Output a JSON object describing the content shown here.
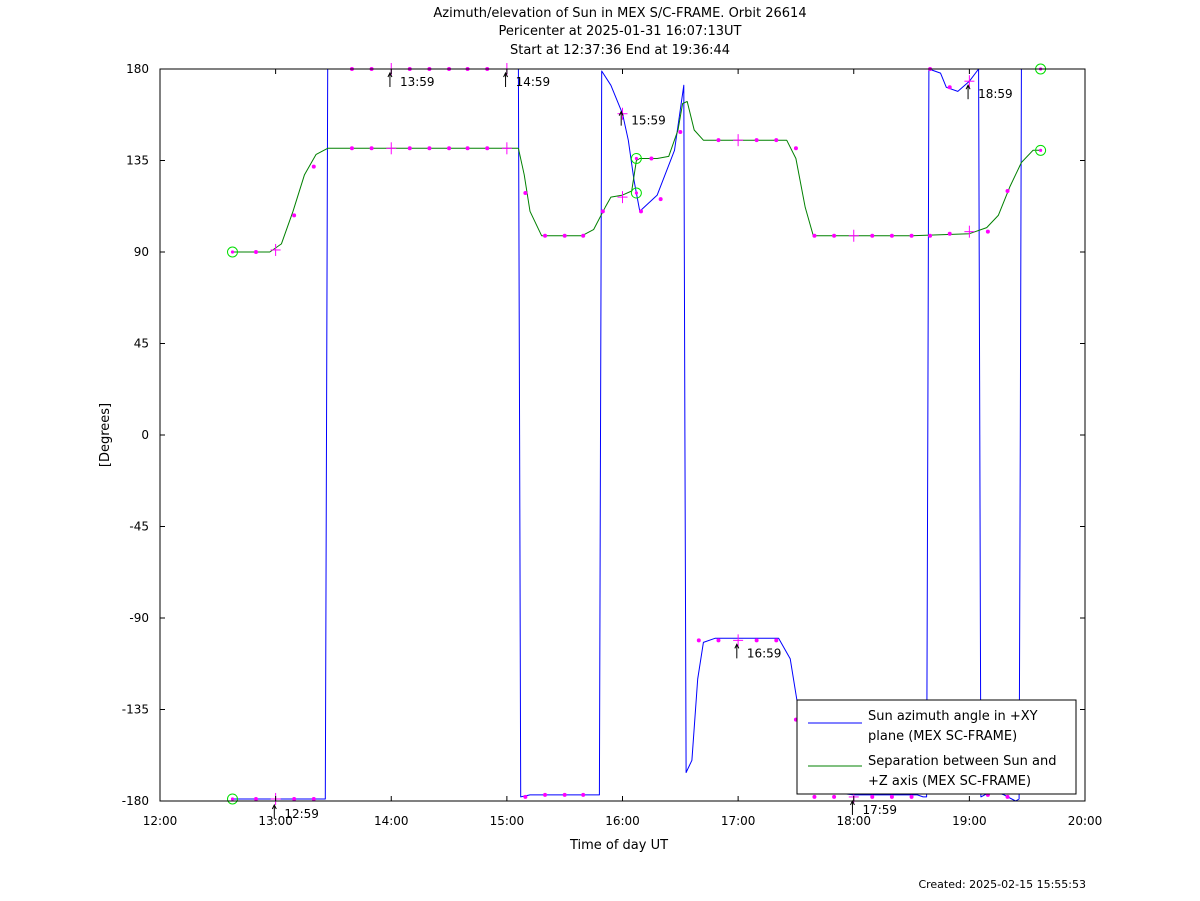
{
  "chart_data": {
    "type": "line",
    "title_lines": [
      "Azimuth/elevation of Sun in MEX S/C-FRAME.  Orbit 26614",
      "Pericenter at 2025-01-31 16:07:13UT",
      "Start at 12:37:36 End at 19:36:44"
    ],
    "xlabel": "Time of day UT",
    "ylabel": "[Degrees]",
    "xlim": [
      12.0,
      20.0
    ],
    "ylim": [
      -180,
      180
    ],
    "x_ticks": [
      12,
      13,
      14,
      15,
      16,
      17,
      18,
      19,
      20
    ],
    "x_tick_labels": [
      "12:00",
      "13:00",
      "14:00",
      "15:00",
      "16:00",
      "17:00",
      "18:00",
      "19:00",
      "20:00"
    ],
    "y_ticks": [
      180,
      135,
      90,
      45,
      0,
      -45,
      -90,
      -135,
      -180
    ],
    "y_tick_labels": [
      "180",
      "135",
      "90",
      "45",
      "0",
      "-45",
      "-90",
      "-135",
      "-180"
    ],
    "legend_placement": "bottom-right",
    "series": [
      {
        "name": "Sun azimuth angle in +XY plane (MEX SC-FRAME)",
        "legend_lines": [
          "Sun azimuth angle in +XY",
          "plane (MEX SC-FRAME)"
        ],
        "color": "#0000ff",
        "x": [
          12.627,
          13.0,
          13.3,
          13.43,
          13.44,
          13.45,
          14.0,
          14.5,
          15.0,
          15.1,
          15.11,
          15.12,
          15.2,
          15.5,
          15.8,
          15.81,
          15.82,
          15.9,
          16.0,
          16.05,
          16.1,
          16.15,
          16.3,
          16.45,
          16.5,
          16.53,
          16.54,
          16.55,
          16.6,
          16.65,
          16.7,
          16.8,
          17.0,
          17.35,
          17.45,
          17.55,
          17.6,
          17.7,
          18.0,
          18.3,
          18.55,
          18.6,
          18.63,
          18.64,
          18.65,
          18.75,
          18.8,
          18.9,
          19.0,
          19.08,
          19.09,
          19.1,
          19.2,
          19.3,
          19.4,
          19.43,
          19.44,
          19.45,
          19.616
        ],
        "y": [
          -179,
          -179,
          -179,
          -179,
          0,
          180,
          180,
          180,
          180,
          180,
          0,
          -178,
          -177,
          -177,
          -177,
          0,
          179,
          172,
          158,
          145,
          125,
          110,
          118,
          140,
          160,
          172,
          0,
          -166,
          -160,
          -120,
          -102,
          -100,
          -100,
          -100,
          -110,
          -145,
          -160,
          -175,
          -177,
          -177,
          -177,
          -178,
          -178,
          0,
          180,
          178,
          171,
          169,
          174,
          180,
          0,
          -178,
          -175,
          -177,
          -180,
          -179,
          0,
          180,
          180
        ]
      },
      {
        "name": "Separation between Sun and +Z axis (MEX SC-FRAME)",
        "legend_lines": [
          "Separation between Sun and",
          "+Z axis (MEX SC-FRAME)"
        ],
        "color": "#008000",
        "x": [
          12.627,
          12.8,
          12.95,
          13.05,
          13.15,
          13.25,
          13.35,
          13.45,
          13.6,
          14.0,
          14.5,
          15.0,
          15.1,
          15.15,
          15.2,
          15.3,
          15.5,
          15.65,
          15.75,
          15.85,
          15.9,
          16.0,
          16.08,
          16.12,
          16.15,
          16.3,
          16.4,
          16.48,
          16.52,
          16.56,
          16.62,
          16.7,
          17.0,
          17.3,
          17.42,
          17.5,
          17.58,
          17.65,
          18.0,
          18.5,
          19.0,
          19.15,
          19.25,
          19.35,
          19.45,
          19.55,
          19.616
        ],
        "y": [
          90,
          90,
          90,
          94,
          110,
          128,
          138,
          141,
          141,
          141,
          141,
          141,
          141,
          128,
          110,
          98,
          98,
          98,
          101,
          112,
          117,
          118,
          120,
          135,
          136,
          136,
          137,
          150,
          163,
          164,
          150,
          145,
          145,
          145,
          145,
          136,
          112,
          98,
          98,
          98,
          99,
          102,
          108,
          122,
          134,
          140,
          140
        ]
      }
    ],
    "marker_color": "#ff00ff",
    "small_dots": [
      {
        "x": 12.83,
        "y": -179
      },
      {
        "x": 13.16,
        "y": -179
      },
      {
        "x": 13.33,
        "y": -179
      },
      {
        "x": 13.66,
        "y": 180
      },
      {
        "x": 13.83,
        "y": 180
      },
      {
        "x": 14.16,
        "y": 180
      },
      {
        "x": 14.33,
        "y": 180
      },
      {
        "x": 14.5,
        "y": 180
      },
      {
        "x": 14.66,
        "y": 180
      },
      {
        "x": 14.83,
        "y": 180
      },
      {
        "x": 15.16,
        "y": -178
      },
      {
        "x": 15.33,
        "y": -177
      },
      {
        "x": 15.5,
        "y": -177
      },
      {
        "x": 15.66,
        "y": -177
      },
      {
        "x": 16.66,
        "y": -101
      },
      {
        "x": 16.83,
        "y": -101
      },
      {
        "x": 17.16,
        "y": -101
      },
      {
        "x": 17.33,
        "y": -101
      },
      {
        "x": 17.5,
        "y": -140
      },
      {
        "x": 17.66,
        "y": -178
      },
      {
        "x": 17.83,
        "y": -178
      },
      {
        "x": 18.16,
        "y": -178
      },
      {
        "x": 18.33,
        "y": -178
      },
      {
        "x": 18.5,
        "y": -178
      },
      {
        "x": 18.66,
        "y": 180
      },
      {
        "x": 18.83,
        "y": 171
      },
      {
        "x": 19.16,
        "y": -177
      },
      {
        "x": 19.33,
        "y": -178
      },
      {
        "x": 12.83,
        "y": 90
      },
      {
        "x": 13.16,
        "y": 108
      },
      {
        "x": 13.33,
        "y": 132
      },
      {
        "x": 13.66,
        "y": 141
      },
      {
        "x": 13.83,
        "y": 141
      },
      {
        "x": 14.16,
        "y": 141
      },
      {
        "x": 14.33,
        "y": 141
      },
      {
        "x": 14.5,
        "y": 141
      },
      {
        "x": 14.66,
        "y": 141
      },
      {
        "x": 14.83,
        "y": 141
      },
      {
        "x": 15.16,
        "y": 119
      },
      {
        "x": 15.33,
        "y": 98
      },
      {
        "x": 15.5,
        "y": 98
      },
      {
        "x": 15.66,
        "y": 98
      },
      {
        "x": 15.83,
        "y": 110
      },
      {
        "x": 16.16,
        "y": 110
      },
      {
        "x": 16.33,
        "y": 116
      },
      {
        "x": 16.25,
        "y": 136
      },
      {
        "x": 16.5,
        "y": 149
      },
      {
        "x": 16.83,
        "y": 145
      },
      {
        "x": 17.16,
        "y": 145
      },
      {
        "x": 17.33,
        "y": 145
      },
      {
        "x": 17.5,
        "y": 141
      },
      {
        "x": 17.66,
        "y": 98
      },
      {
        "x": 17.83,
        "y": 98
      },
      {
        "x": 18.16,
        "y": 98
      },
      {
        "x": 18.33,
        "y": 98
      },
      {
        "x": 18.5,
        "y": 98
      },
      {
        "x": 18.66,
        "y": 98
      },
      {
        "x": 18.83,
        "y": 99
      },
      {
        "x": 19.16,
        "y": 100
      },
      {
        "x": 19.33,
        "y": 120
      }
    ],
    "hour_markers": [
      {
        "x": 13.0,
        "y": -179
      },
      {
        "x": 14.0,
        "y": 180
      },
      {
        "x": 15.0,
        "y": 180
      },
      {
        "x": 16.0,
        "y": 158
      },
      {
        "x": 17.0,
        "y": -101
      },
      {
        "x": 18.0,
        "y": -178
      },
      {
        "x": 19.0,
        "y": 174
      },
      {
        "x": 13.0,
        "y": 91
      },
      {
        "x": 14.0,
        "y": 141
      },
      {
        "x": 15.0,
        "y": 141
      },
      {
        "x": 16.0,
        "y": 117
      },
      {
        "x": 17.0,
        "y": 145
      },
      {
        "x": 18.0,
        "y": 98
      },
      {
        "x": 19.0,
        "y": 100
      }
    ],
    "start_end_circles": [
      {
        "x": 12.627,
        "y": -179
      },
      {
        "x": 12.627,
        "y": 90
      },
      {
        "x": 19.616,
        "y": 180
      },
      {
        "x": 19.616,
        "y": 140
      },
      {
        "x": 16.12,
        "y": 136
      },
      {
        "x": 16.12,
        "y": 119
      }
    ],
    "hour_annotations": [
      {
        "label": "12:59",
        "x": 12.98,
        "y": -180
      },
      {
        "label": "13:59",
        "x": 13.98,
        "y": 180
      },
      {
        "label": "14:59",
        "x": 14.98,
        "y": 180
      },
      {
        "label": "15:59",
        "x": 15.98,
        "y": 161
      },
      {
        "label": "16:59",
        "x": 16.98,
        "y": -101
      },
      {
        "label": "17:59",
        "x": 17.98,
        "y": -178
      },
      {
        "label": "18:59",
        "x": 18.98,
        "y": 174
      }
    ],
    "created_text": "Created: 2025-02-15 15:55:53"
  }
}
